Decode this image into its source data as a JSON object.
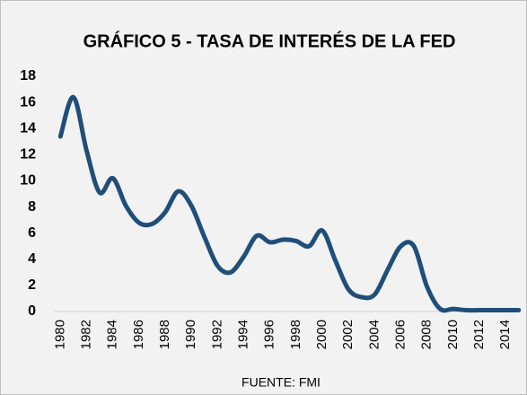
{
  "chart_data": {
    "type": "line",
    "title": "GRÁFICO 5 - TASA DE INTERÉS DE LA FED",
    "source": "FUENTE: FMI",
    "x": [
      1980,
      1981,
      1982,
      1983,
      1984,
      1985,
      1986,
      1987,
      1988,
      1989,
      1990,
      1991,
      1992,
      1993,
      1994,
      1995,
      1996,
      1997,
      1998,
      1999,
      2000,
      2001,
      2002,
      2003,
      2004,
      2005,
      2006,
      2007,
      2008,
      2009,
      2010,
      2011,
      2012,
      2013,
      2014,
      2015
    ],
    "series": [
      {
        "name": "Tasa de interés de la FED",
        "color": "#1f4e79",
        "values": [
          13.4,
          16.4,
          12.3,
          9.1,
          10.2,
          8.1,
          6.8,
          6.7,
          7.6,
          9.2,
          8.1,
          5.7,
          3.5,
          3.0,
          4.2,
          5.8,
          5.3,
          5.5,
          5.4,
          5.0,
          6.2,
          3.9,
          1.7,
          1.1,
          1.3,
          3.2,
          5.0,
          5.0,
          1.9,
          0.2,
          0.2,
          0.1,
          0.1,
          0.1,
          0.1,
          0.1
        ]
      }
    ],
    "xlim": [
      1979.5,
      2015.5
    ],
    "xticks": [
      1980,
      1982,
      1984,
      1986,
      1988,
      1990,
      1992,
      1994,
      1996,
      1998,
      2000,
      2002,
      2004,
      2006,
      2008,
      2010,
      2012,
      2014
    ],
    "ylim": [
      0,
      18
    ],
    "yticks": [
      0,
      2,
      4,
      6,
      8,
      10,
      12,
      14,
      16,
      18
    ],
    "grid": false
  }
}
